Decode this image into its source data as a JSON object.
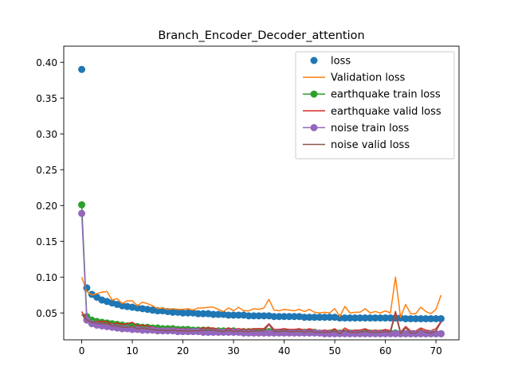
{
  "chart_data": {
    "type": "line",
    "title": "Branch_Encoder_Decoder_attention",
    "xlabel": "",
    "ylabel": "",
    "xlim": [
      -3.55,
      74.55
    ],
    "ylim": [
      0.0125,
      0.4225
    ],
    "xticks": [
      0,
      10,
      20,
      30,
      40,
      50,
      60,
      70
    ],
    "yticks": [
      0.05,
      0.1,
      0.15,
      0.2,
      0.25,
      0.3,
      0.35,
      0.4
    ],
    "ytick_labels": [
      "0.05",
      "0.10",
      "0.15",
      "0.20",
      "0.25",
      "0.30",
      "0.35",
      "0.40"
    ],
    "grid": false,
    "legend_position": "top-right",
    "x": [
      0,
      1,
      2,
      3,
      4,
      5,
      6,
      7,
      8,
      9,
      10,
      11,
      12,
      13,
      14,
      15,
      16,
      17,
      18,
      19,
      20,
      21,
      22,
      23,
      24,
      25,
      26,
      27,
      28,
      29,
      30,
      31,
      32,
      33,
      34,
      35,
      36,
      37,
      38,
      39,
      40,
      41,
      42,
      43,
      44,
      45,
      46,
      47,
      48,
      49,
      50,
      51,
      52,
      53,
      54,
      55,
      56,
      57,
      58,
      59,
      60,
      61,
      62,
      63,
      64,
      65,
      66,
      67,
      68,
      69,
      70,
      71
    ],
    "series": [
      {
        "name": "loss",
        "style": "markers",
        "color": "#1f77b4",
        "values": [
          0.39,
          0.085,
          0.076,
          0.072,
          0.068,
          0.066,
          0.064,
          0.062,
          0.06,
          0.059,
          0.058,
          0.057,
          0.056,
          0.055,
          0.054,
          0.053,
          0.053,
          0.052,
          0.051,
          0.051,
          0.05,
          0.05,
          0.05,
          0.049,
          0.049,
          0.049,
          0.048,
          0.048,
          0.048,
          0.047,
          0.047,
          0.047,
          0.047,
          0.046,
          0.046,
          0.046,
          0.046,
          0.046,
          0.045,
          0.045,
          0.045,
          0.045,
          0.045,
          0.045,
          0.044,
          0.044,
          0.044,
          0.044,
          0.044,
          0.044,
          0.044,
          0.043,
          0.043,
          0.043,
          0.043,
          0.043,
          0.043,
          0.043,
          0.043,
          0.043,
          0.043,
          0.043,
          0.043,
          0.043,
          0.042,
          0.042,
          0.042,
          0.042,
          0.042,
          0.042,
          0.042,
          0.042
        ]
      },
      {
        "name": "Validation loss",
        "style": "line",
        "color": "#ff7f0e",
        "values": [
          0.1,
          0.08,
          0.075,
          0.077,
          0.079,
          0.08,
          0.068,
          0.07,
          0.063,
          0.067,
          0.067,
          0.06,
          0.065,
          0.063,
          0.06,
          0.056,
          0.057,
          0.055,
          0.056,
          0.055,
          0.055,
          0.056,
          0.054,
          0.057,
          0.057,
          0.058,
          0.058,
          0.055,
          0.052,
          0.057,
          0.053,
          0.058,
          0.053,
          0.053,
          0.056,
          0.055,
          0.057,
          0.069,
          0.054,
          0.053,
          0.055,
          0.054,
          0.053,
          0.055,
          0.052,
          0.055,
          0.051,
          0.05,
          0.051,
          0.05,
          0.056,
          0.045,
          0.059,
          0.05,
          0.051,
          0.051,
          0.056,
          0.05,
          0.052,
          0.05,
          0.053,
          0.05,
          0.1,
          0.044,
          0.062,
          0.049,
          0.049,
          0.058,
          0.052,
          0.049,
          0.055,
          0.075
        ]
      },
      {
        "name": "earthquake train loss",
        "style": "line-markers",
        "color": "#2ca02c",
        "values": [
          0.201,
          0.045,
          0.04,
          0.038,
          0.037,
          0.036,
          0.035,
          0.034,
          0.033,
          0.032,
          0.032,
          0.031,
          0.03,
          0.03,
          0.029,
          0.029,
          0.028,
          0.028,
          0.028,
          0.027,
          0.027,
          0.027,
          0.026,
          0.026,
          0.026,
          0.026,
          0.025,
          0.025,
          0.025,
          0.025,
          0.025,
          0.024,
          0.024,
          0.024,
          0.024,
          0.024,
          0.024,
          0.024,
          0.023,
          0.023,
          0.023,
          0.023,
          0.023,
          0.023,
          0.023,
          0.023,
          0.023,
          0.022,
          0.022,
          0.022,
          0.022,
          0.022,
          0.022,
          0.022,
          0.022,
          0.022,
          0.022,
          0.022,
          0.022,
          0.022,
          0.022,
          0.022,
          0.022,
          0.021,
          0.021,
          0.021,
          0.021,
          0.021,
          0.021,
          0.021,
          0.021,
          0.021
        ]
      },
      {
        "name": "earthquake valid loss",
        "style": "line",
        "color": "#d62728",
        "values": [
          0.052,
          0.04,
          0.036,
          0.038,
          0.038,
          0.038,
          0.034,
          0.036,
          0.034,
          0.035,
          0.037,
          0.032,
          0.033,
          0.032,
          0.03,
          0.029,
          0.028,
          0.028,
          0.029,
          0.028,
          0.028,
          0.028,
          0.027,
          0.028,
          0.029,
          0.029,
          0.029,
          0.027,
          0.026,
          0.029,
          0.027,
          0.028,
          0.027,
          0.027,
          0.028,
          0.028,
          0.028,
          0.035,
          0.027,
          0.027,
          0.028,
          0.027,
          0.027,
          0.028,
          0.026,
          0.028,
          0.026,
          0.025,
          0.026,
          0.025,
          0.028,
          0.023,
          0.029,
          0.025,
          0.026,
          0.026,
          0.028,
          0.025,
          0.026,
          0.025,
          0.027,
          0.025,
          0.052,
          0.023,
          0.031,
          0.025,
          0.025,
          0.029,
          0.026,
          0.025,
          0.028,
          0.038
        ]
      },
      {
        "name": "noise train loss",
        "style": "line-markers",
        "color": "#9467bd",
        "values": [
          0.189,
          0.04,
          0.035,
          0.033,
          0.032,
          0.031,
          0.03,
          0.029,
          0.028,
          0.028,
          0.027,
          0.027,
          0.026,
          0.026,
          0.026,
          0.025,
          0.025,
          0.025,
          0.025,
          0.024,
          0.024,
          0.024,
          0.024,
          0.024,
          0.023,
          0.023,
          0.023,
          0.023,
          0.023,
          0.023,
          0.023,
          0.023,
          0.022,
          0.022,
          0.022,
          0.022,
          0.022,
          0.022,
          0.022,
          0.022,
          0.022,
          0.022,
          0.022,
          0.022,
          0.022,
          0.022,
          0.022,
          0.022,
          0.021,
          0.021,
          0.021,
          0.021,
          0.021,
          0.021,
          0.021,
          0.021,
          0.021,
          0.021,
          0.021,
          0.021,
          0.021,
          0.021,
          0.021,
          0.021,
          0.021,
          0.021,
          0.021,
          0.021,
          0.021,
          0.021,
          0.021,
          0.021
        ]
      },
      {
        "name": "noise valid loss",
        "style": "line",
        "color": "#8c564b",
        "values": [
          0.048,
          0.04,
          0.037,
          0.036,
          0.035,
          0.035,
          0.032,
          0.032,
          0.03,
          0.03,
          0.031,
          0.028,
          0.029,
          0.028,
          0.027,
          0.026,
          0.026,
          0.025,
          0.026,
          0.025,
          0.025,
          0.025,
          0.025,
          0.025,
          0.026,
          0.026,
          0.026,
          0.025,
          0.024,
          0.026,
          0.024,
          0.025,
          0.024,
          0.024,
          0.025,
          0.025,
          0.025,
          0.034,
          0.024,
          0.024,
          0.025,
          0.024,
          0.024,
          0.025,
          0.023,
          0.025,
          0.023,
          0.023,
          0.023,
          0.023,
          0.025,
          0.021,
          0.026,
          0.023,
          0.023,
          0.023,
          0.025,
          0.023,
          0.023,
          0.023,
          0.024,
          0.023,
          0.049,
          0.021,
          0.029,
          0.022,
          0.022,
          0.027,
          0.023,
          0.022,
          0.025,
          0.037
        ]
      }
    ]
  }
}
